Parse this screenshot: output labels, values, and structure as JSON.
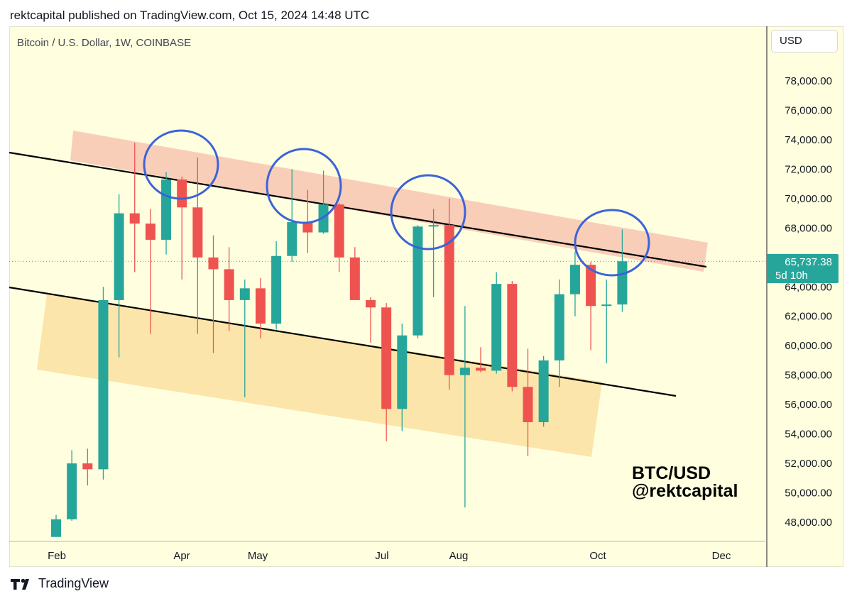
{
  "header": {
    "published": "rektcapital published on TradingView.com, Oct 15, 2024 14:48 UTC"
  },
  "symbol": {
    "title": "Bitcoin / U.S. Dollar, 1W, COINBASE"
  },
  "currency": {
    "label": "USD"
  },
  "footer": {
    "brand": "TradingView"
  },
  "overlay": {
    "line1": "BTC/USD",
    "line2": "@rektcapital"
  },
  "price_tag": {
    "price": "65,737.38",
    "countdown": "5d 10h"
  },
  "colors": {
    "background": "#ffffe0",
    "up": "#26a69a",
    "down": "#ef5350",
    "upper_zone": "#f8c6b0",
    "lower_zone": "#fbe1a0",
    "trendline": "#000000",
    "circle": "#3b63d9",
    "price_tag": "#26a69a"
  },
  "chart_data": {
    "type": "candlestick",
    "interval": "1W",
    "title": "Bitcoin / U.S. Dollar, 1W, COINBASE",
    "x_tick_labels": [
      "Feb",
      "Apr",
      "May",
      "Jul",
      "Aug",
      "Oct",
      "Dec"
    ],
    "y_tick_labels": [
      "48,000.00",
      "50,000.00",
      "52,000.00",
      "54,000.00",
      "56,000.00",
      "58,000.00",
      "60,000.00",
      "62,000.00",
      "64,000.00",
      "66,000.00",
      "68,000.00",
      "70,000.00",
      "72,000.00",
      "74,000.00",
      "76,000.00",
      "78,000.00"
    ],
    "ylim": [
      47000,
      81000
    ],
    "last_price": 65737.38,
    "candles": [
      {
        "open": 47000,
        "high": 48500,
        "low": 47000,
        "close": 48200
      },
      {
        "open": 48200,
        "high": 52900,
        "low": 48100,
        "close": 52000
      },
      {
        "open": 52000,
        "high": 53000,
        "low": 50500,
        "close": 51600
      },
      {
        "open": 51600,
        "high": 64000,
        "low": 50900,
        "close": 63100
      },
      {
        "open": 63100,
        "high": 70300,
        "low": 59200,
        "close": 69000
      },
      {
        "open": 69000,
        "high": 73800,
        "low": 65000,
        "close": 68300
      },
      {
        "open": 68300,
        "high": 69300,
        "low": 60800,
        "close": 67200
      },
      {
        "open": 67200,
        "high": 71800,
        "low": 66200,
        "close": 71300
      },
      {
        "open": 71300,
        "high": 71500,
        "low": 64500,
        "close": 69400
      },
      {
        "open": 69400,
        "high": 72800,
        "low": 60800,
        "close": 66000
      },
      {
        "open": 66000,
        "high": 67500,
        "low": 59500,
        "close": 65200
      },
      {
        "open": 65200,
        "high": 66700,
        "low": 61000,
        "close": 63100
      },
      {
        "open": 63100,
        "high": 64500,
        "low": 56500,
        "close": 63900
      },
      {
        "open": 63900,
        "high": 64600,
        "low": 60500,
        "close": 61500
      },
      {
        "open": 61500,
        "high": 67100,
        "low": 61100,
        "close": 66100
      },
      {
        "open": 66100,
        "high": 72000,
        "low": 65700,
        "close": 68400
      },
      {
        "open": 68400,
        "high": 70600,
        "low": 66300,
        "close": 67700
      },
      {
        "open": 67700,
        "high": 71900,
        "low": 67600,
        "close": 69600
      },
      {
        "open": 69600,
        "high": 69700,
        "low": 65000,
        "close": 66000
      },
      {
        "open": 66000,
        "high": 66700,
        "low": 63100,
        "close": 63100
      },
      {
        "open": 63100,
        "high": 63300,
        "low": 60200,
        "close": 62600
      },
      {
        "open": 62600,
        "high": 62900,
        "low": 53500,
        "close": 55700
      },
      {
        "open": 55700,
        "high": 61500,
        "low": 54200,
        "close": 60700
      },
      {
        "open": 60700,
        "high": 68200,
        "low": 60500,
        "close": 68100
      },
      {
        "open": 68100,
        "high": 69300,
        "low": 63300,
        "close": 68200
      },
      {
        "open": 68200,
        "high": 70000,
        "low": 57000,
        "close": 58000
      },
      {
        "open": 58000,
        "high": 62700,
        "low": 49000,
        "close": 58500
      },
      {
        "open": 58500,
        "high": 59900,
        "low": 58200,
        "close": 58300
      },
      {
        "open": 58300,
        "high": 65000,
        "low": 58100,
        "close": 64200
      },
      {
        "open": 64200,
        "high": 64400,
        "low": 56900,
        "close": 57200
      },
      {
        "open": 57200,
        "high": 59800,
        "low": 52500,
        "close": 54800
      },
      {
        "open": 54800,
        "high": 59300,
        "low": 54500,
        "close": 59000
      },
      {
        "open": 59000,
        "high": 64500,
        "low": 57200,
        "close": 63500
      },
      {
        "open": 63500,
        "high": 66400,
        "low": 62000,
        "close": 65500
      },
      {
        "open": 65500,
        "high": 65700,
        "low": 59700,
        "close": 62700
      },
      {
        "open": 62700,
        "high": 64500,
        "low": 58800,
        "close": 62800
      },
      {
        "open": 62800,
        "high": 67900,
        "low": 62300,
        "close": 65737.38
      }
    ]
  }
}
